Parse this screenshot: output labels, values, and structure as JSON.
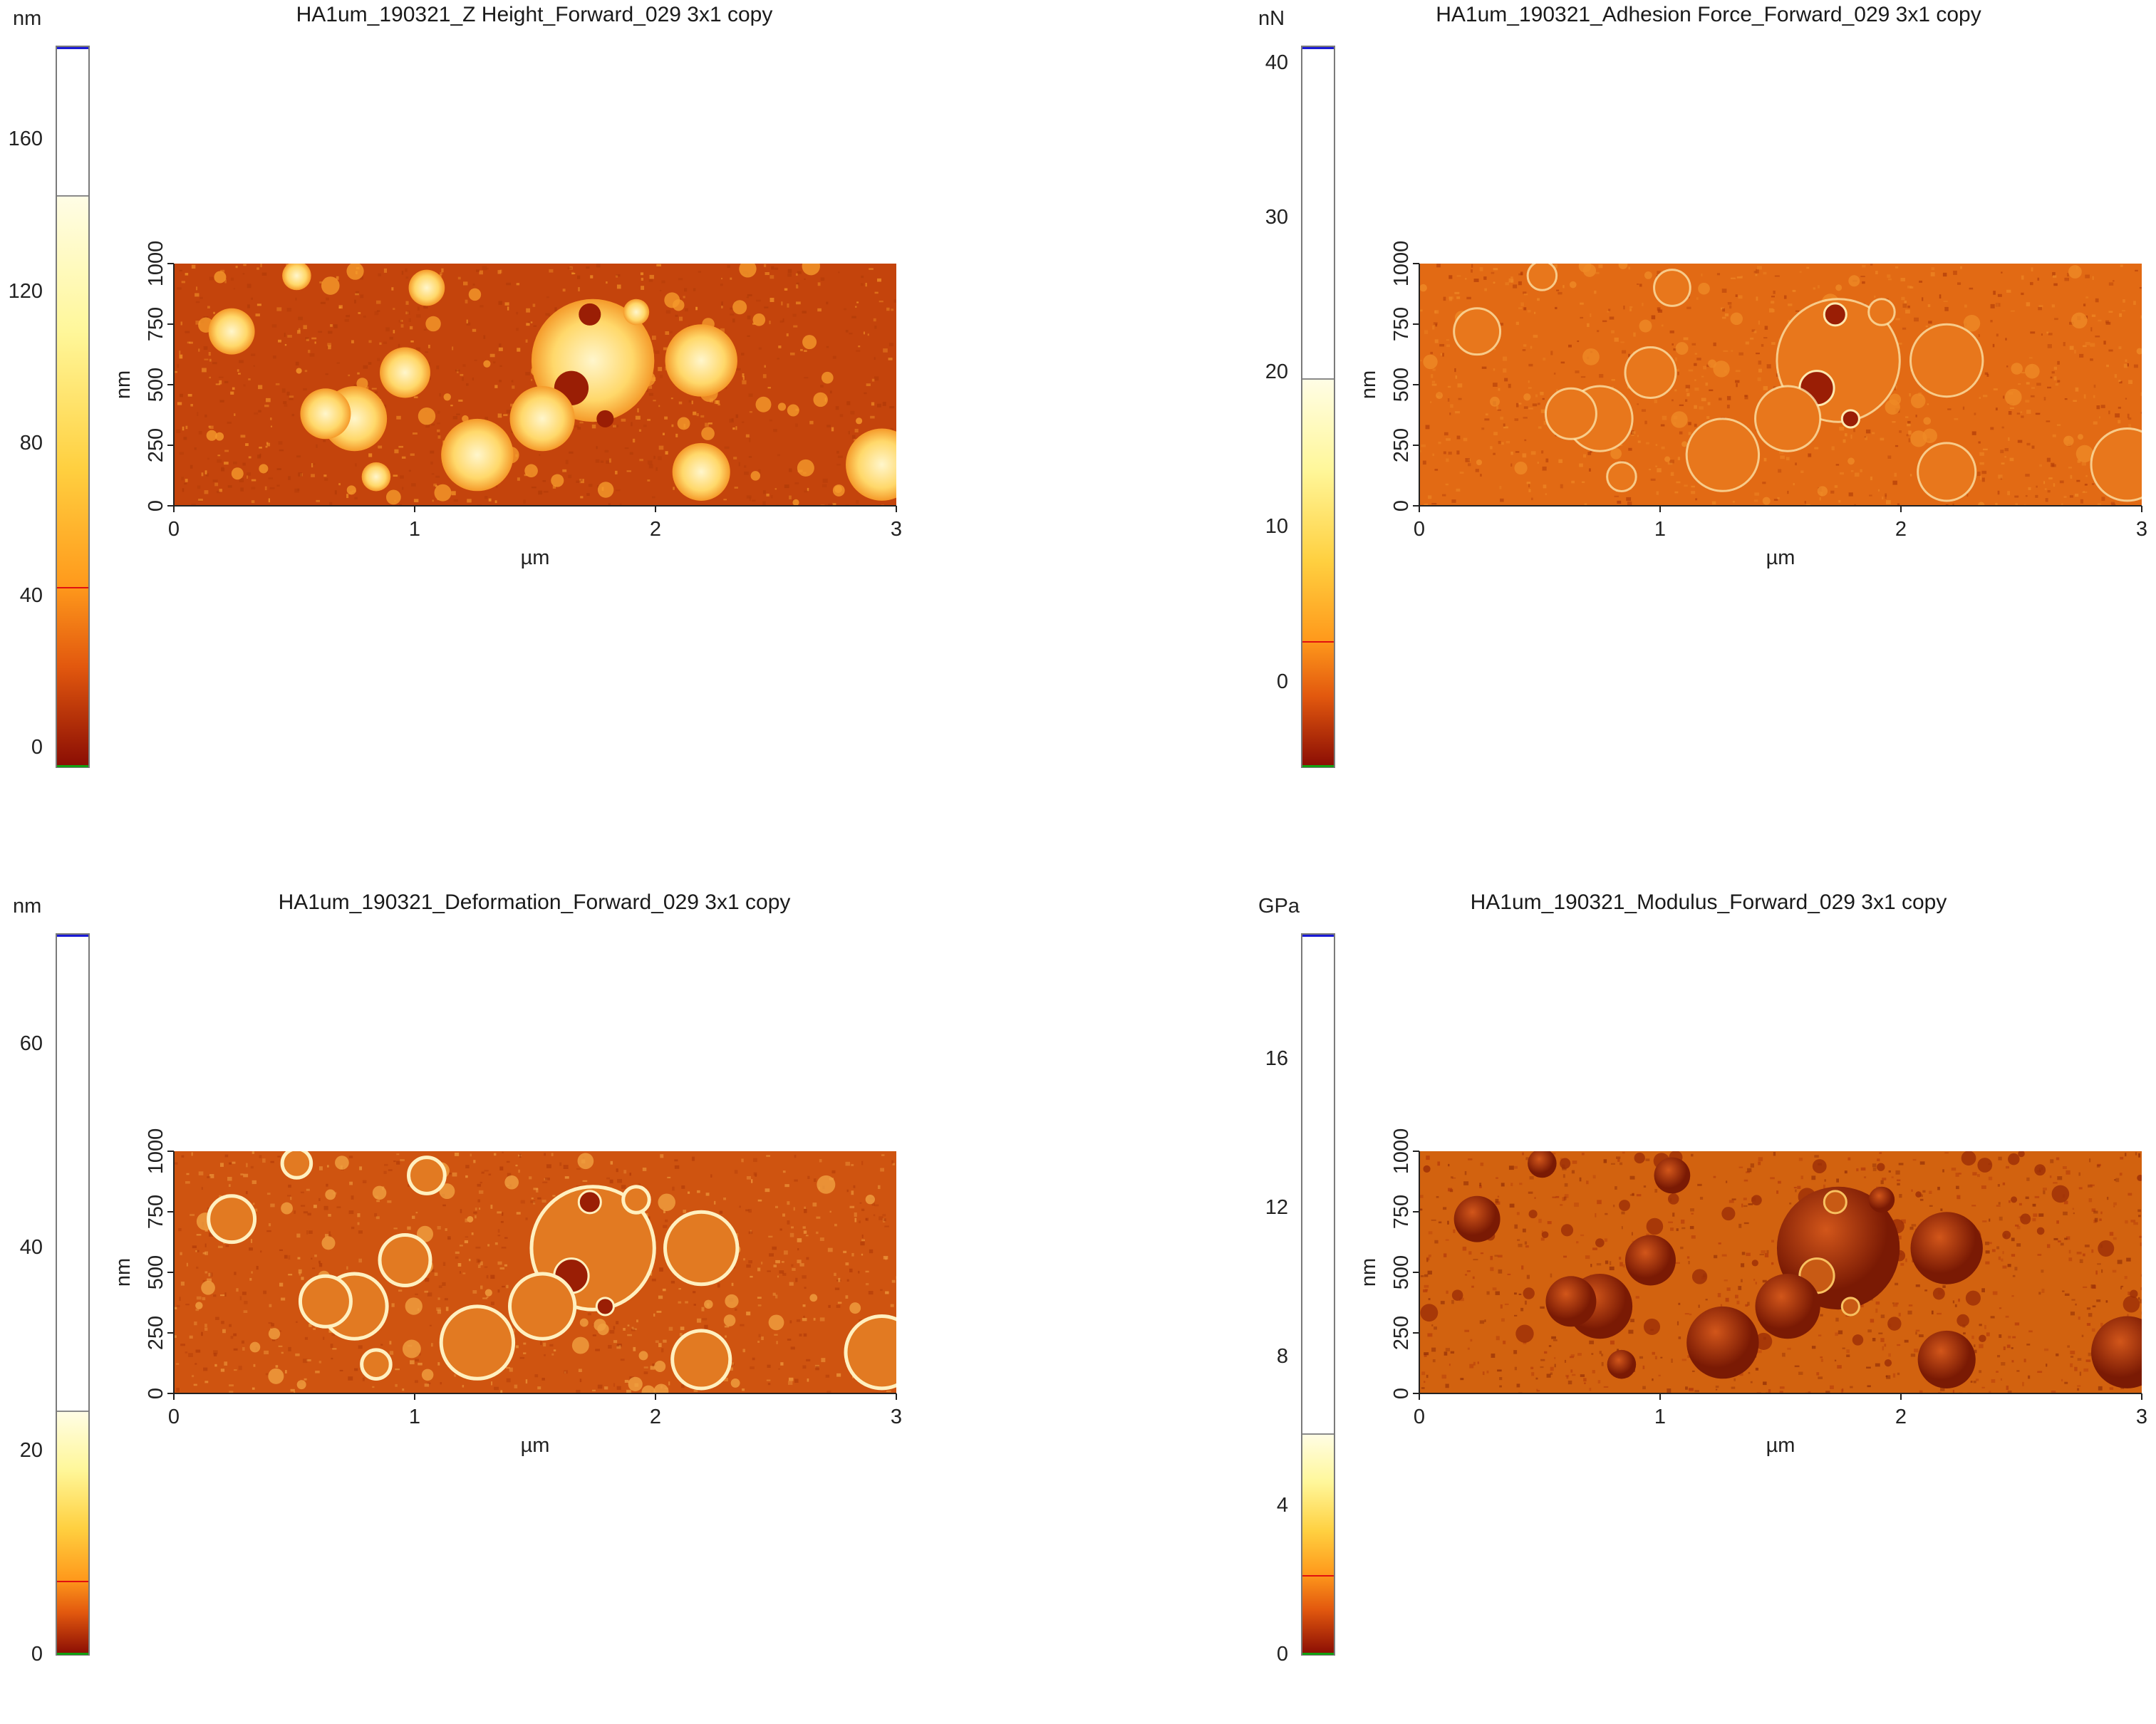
{
  "chart_data": [
    {
      "type": "heatmap",
      "title": "HA1um_190321_Z Height_Forward_029 3x1 copy",
      "colorbar_unit": "nm",
      "colorbar_ticks": [
        0,
        40,
        80,
        120,
        160
      ],
      "colorbar_range": [
        -5,
        185
      ],
      "colorbar_markers": {
        "low": 43,
        "high": 146
      },
      "xlabel": "µm",
      "ylabel": "nm",
      "x_ticks": [
        0,
        1,
        2,
        3
      ],
      "y_ticks": [
        0,
        250,
        500,
        750,
        1000
      ],
      "xlim": [
        0,
        3
      ],
      "ylim": [
        0,
        1000
      ],
      "texture": "blobs",
      "colors": {
        "background": "#c4440c",
        "mid": "#f59a2a",
        "bright": "#fff6cc"
      }
    },
    {
      "type": "heatmap",
      "title": "HA1um_190321_Adhesion Force_Forward_029 3x1 copy",
      "colorbar_unit": "nN",
      "colorbar_ticks": [
        0,
        10,
        20,
        30,
        40
      ],
      "colorbar_range": [
        -5.5,
        41.2
      ],
      "colorbar_markers": {
        "low": 2.8,
        "high": 19.8
      },
      "xlabel": "µm",
      "ylabel": "nm",
      "x_ticks": [
        0,
        1,
        2,
        3
      ],
      "y_ticks": [
        0,
        250,
        500,
        750,
        1000
      ],
      "xlim": [
        0,
        3
      ],
      "ylim": [
        0,
        1000
      ],
      "texture": "rings",
      "colors": {
        "background": "#e26a14",
        "mid": "#ef8a26",
        "bright": "#fde9b0"
      }
    },
    {
      "type": "heatmap",
      "title": "HA1um_190321_Deformation_Forward_029 3x1 copy",
      "colorbar_unit": "nm",
      "colorbar_ticks": [
        0,
        20,
        40,
        60
      ],
      "colorbar_range": [
        0,
        71
      ],
      "colorbar_markers": {
        "low": 7.5,
        "high": 24.2
      },
      "xlabel": "µm",
      "ylabel": "nm",
      "x_ticks": [
        0,
        1,
        2,
        3
      ],
      "y_ticks": [
        0,
        250,
        500,
        750,
        1000
      ],
      "xlim": [
        0,
        3
      ],
      "ylim": [
        0,
        1000
      ],
      "texture": "edged",
      "colors": {
        "background": "#cf5410",
        "mid": "#f0a040",
        "bright": "#fff0c0"
      }
    },
    {
      "type": "heatmap",
      "title": "HA1um_190321_Modulus_Forward_029 3x1 copy",
      "colorbar_unit": "GPa",
      "colorbar_ticks": [
        0,
        4,
        8,
        12,
        16
      ],
      "colorbar_range": [
        0,
        19.4
      ],
      "colorbar_markers": {
        "low": 2.2,
        "high": 6.0
      },
      "xlabel": "µm",
      "ylabel": "nm",
      "x_ticks": [
        0,
        1,
        2,
        3
      ],
      "y_ticks": [
        0,
        250,
        500,
        750,
        1000
      ],
      "xlim": [
        0,
        3
      ],
      "ylim": [
        0,
        1000
      ],
      "texture": "dark",
      "colors": {
        "background": "#d2620f",
        "mid": "#b3380a",
        "bright": "#f7c060"
      }
    }
  ]
}
